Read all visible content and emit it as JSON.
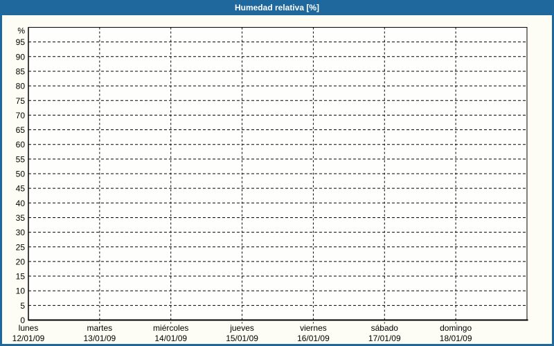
{
  "header": {
    "title": "Humedad relativa [%]"
  },
  "colors": {
    "accent": "#1e689e",
    "page_bg": "#fdfdf5",
    "plot_bg": "#fefefc",
    "grid": "#000000",
    "axis": "#000000",
    "text": "#000000",
    "title_text": "#ffffff"
  },
  "chart_data": {
    "type": "line",
    "title": "Humedad relativa [%]",
    "xlabel": "",
    "ylabel": "%",
    "ylim": [
      0,
      100
    ],
    "ytick_step": 5,
    "yticks": [
      0,
      5,
      10,
      15,
      20,
      25,
      30,
      35,
      40,
      45,
      50,
      55,
      60,
      65,
      70,
      75,
      80,
      85,
      90,
      95
    ],
    "grid": true,
    "legend": "none",
    "categories": [
      {
        "day": "lunes",
        "date": "12/01/09"
      },
      {
        "day": "martes",
        "date": "13/01/09"
      },
      {
        "day": "miércoles",
        "date": "14/01/09"
      },
      {
        "day": "jueves",
        "date": "15/01/09"
      },
      {
        "day": "viernes",
        "date": "16/01/09"
      },
      {
        "day": "sábado",
        "date": "17/01/09"
      },
      {
        "day": "domingo",
        "date": "18/01/09"
      }
    ],
    "series": []
  }
}
